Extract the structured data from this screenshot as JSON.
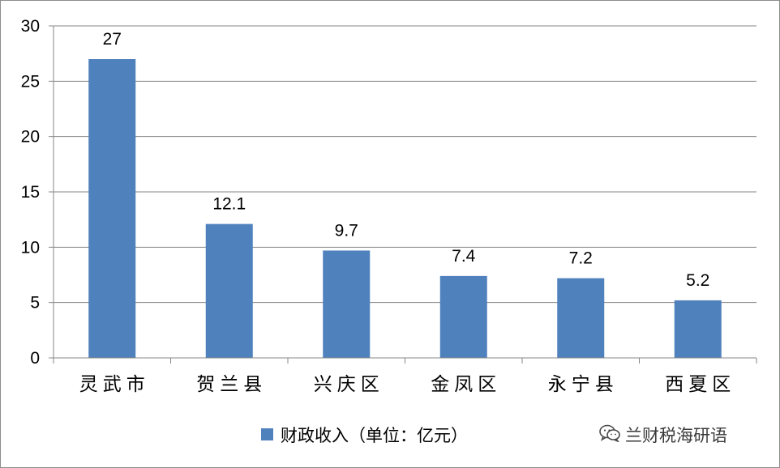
{
  "chart_data": {
    "type": "bar",
    "categories": [
      "灵武市",
      "贺兰县",
      "兴庆区",
      "金凤区",
      "永宁县",
      "西夏区"
    ],
    "series": [
      {
        "name": "财政收入（单位：亿元）",
        "values": [
          27,
          12.1,
          9.7,
          7.4,
          7.2,
          5.2
        ]
      }
    ],
    "data_labels": [
      "27",
      "12.1",
      "9.7",
      "7.4",
      "7.2",
      "5.2"
    ],
    "y_ticks": [
      "0",
      "5",
      "10",
      "15",
      "20",
      "25",
      "30"
    ],
    "ylim": [
      0,
      30
    ],
    "grid": true,
    "legend": "bottom",
    "colors": {
      "bar": "#4f81bd",
      "grid": "#878787",
      "axis": "#878787"
    }
  },
  "watermark": {
    "text": "兰财税海研语",
    "icon": "wechat-icon"
  }
}
